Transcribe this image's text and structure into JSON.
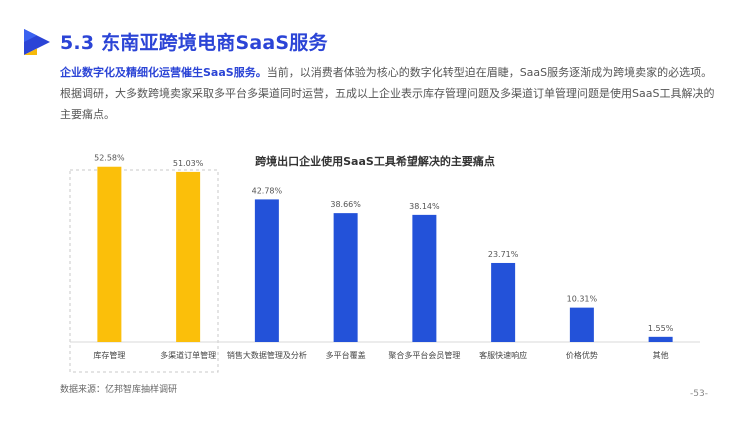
{
  "header": {
    "section_title": "5.3 东南亚跨境电商SaaS服务"
  },
  "intro": {
    "lead": "企业数字化及精细化运营催生SaaS服务。",
    "body": "当前，以消费者体验为核心的数字化转型迫在眉睫，SaaS服务逐渐成为跨境卖家的必选项。根据调研，大多数跨境卖家采取多平台多渠道同时运营，五成以上企业表示库存管理问题及多渠道订单管理问题是使用SaaS工具解决的主要痛点。"
  },
  "chart_data": {
    "type": "bar",
    "title": "跨境出口企业使用SaaS工具希望解决的主要痛点",
    "categories": [
      "库存管理",
      "多渠道订单管理",
      "销售大数据管理及分析",
      "多平台覆盖",
      "聚合多平台会员管理",
      "客服快速响应",
      "价格优势",
      "其他"
    ],
    "values": [
      52.58,
      51.03,
      42.78,
      38.66,
      38.14,
      23.71,
      10.31,
      1.55
    ],
    "value_labels": [
      "52.58%",
      "51.03%",
      "42.78%",
      "38.66%",
      "38.14%",
      "23.71%",
      "10.31%",
      "1.55%"
    ],
    "highlighted": [
      true,
      true,
      false,
      false,
      false,
      false,
      false,
      false
    ],
    "colors": {
      "highlight": "#fbbf0a",
      "normal": "#2352d9"
    },
    "ylim": [
      0,
      60
    ],
    "grid": false,
    "xlabel": "",
    "ylabel": ""
  },
  "footer": {
    "source": "数据来源：亿邦智库抽样调研",
    "page": "-53-"
  }
}
